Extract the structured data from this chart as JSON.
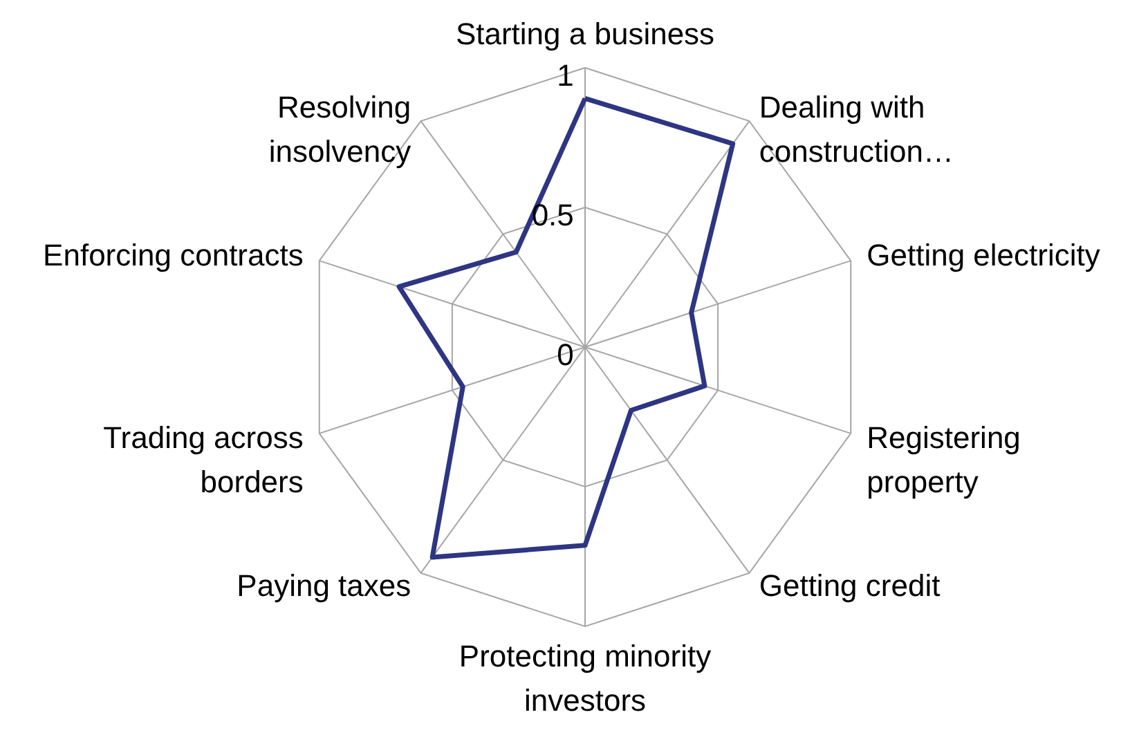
{
  "chart_data": {
    "type": "radar",
    "categories": [
      "Starting a business",
      "Dealing with construction…",
      "Getting electricity",
      "Registering property",
      "Getting credit",
      "Protecting minority investors",
      "Paying taxes",
      "Trading across borders",
      "Enforcing contracts",
      "Resolving insolvency"
    ],
    "series": [
      {
        "color": "#2e3582",
        "values": [
          0.89,
          0.9,
          0.4,
          0.45,
          0.28,
          0.71,
          0.93,
          0.46,
          0.7,
          0.42
        ]
      }
    ],
    "ylim": [
      0,
      1
    ],
    "yticks": [
      0,
      0.5,
      1
    ],
    "grid": true,
    "marker": "none",
    "line_style": "solid"
  }
}
